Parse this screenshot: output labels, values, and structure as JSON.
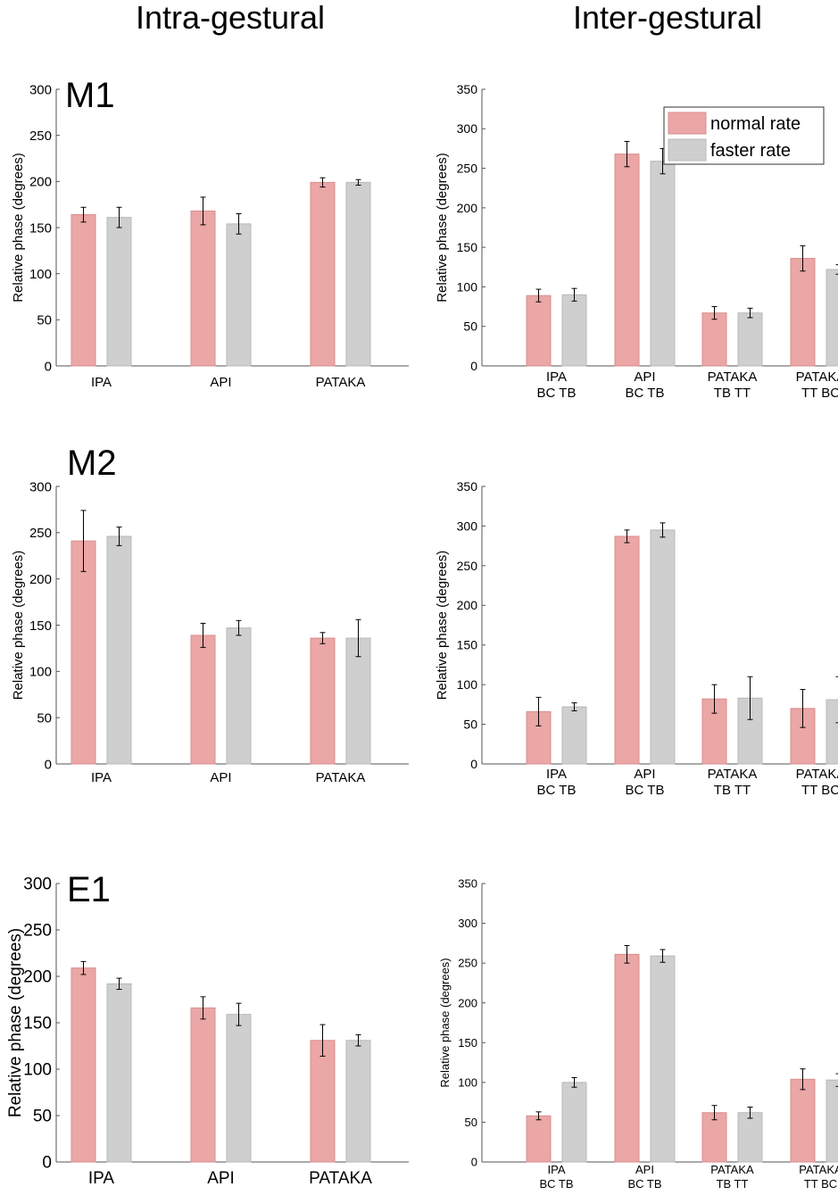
{
  "columns": {
    "left": "Intra-gestural",
    "right": "Inter-gestural"
  },
  "legend": [
    {
      "name": "normal rate",
      "color": "#eba6a6"
    },
    {
      "name": "faster rate",
      "color": "#cfcfcf"
    }
  ],
  "colors": {
    "normal": "#eba6a6",
    "normal_edge": "#d98e8e",
    "faster": "#cfcfcf",
    "faster_edge": "#b8b8b8",
    "axis": "#555555"
  },
  "chart_data": [
    {
      "id": "m1-intra",
      "type": "bar",
      "panel_label": "M1",
      "ylabel": "Relative phase (degrees)",
      "ylim": [
        0,
        300
      ],
      "yticks": [
        0,
        50,
        100,
        150,
        200,
        250,
        300
      ],
      "categories": [
        [
          "IPA"
        ],
        [
          "API"
        ],
        [
          "PATAKA"
        ]
      ],
      "series": [
        {
          "name": "normal rate",
          "values": [
            164,
            168,
            199
          ],
          "errors": [
            8,
            15,
            5
          ]
        },
        {
          "name": "faster rate",
          "values": [
            161,
            154,
            199
          ],
          "errors": [
            11,
            11,
            3
          ]
        }
      ]
    },
    {
      "id": "m1-inter",
      "type": "bar",
      "panel_label": "",
      "ylabel": "Relative phase (degrees)",
      "ylim": [
        0,
        350
      ],
      "yticks": [
        0,
        50,
        100,
        150,
        200,
        250,
        300,
        350
      ],
      "categories": [
        [
          "IPA",
          "BC TB"
        ],
        [
          "API",
          "BC TB"
        ],
        [
          "PATAKA",
          "TB TT"
        ],
        [
          "PATAKA",
          "TT BC"
        ]
      ],
      "series": [
        {
          "name": "normal rate",
          "values": [
            89,
            268,
            67,
            136
          ],
          "errors": [
            8,
            16,
            8,
            16
          ]
        },
        {
          "name": "faster rate",
          "values": [
            90,
            259,
            67,
            122
          ],
          "errors": [
            8,
            16,
            6,
            6
          ]
        }
      ]
    },
    {
      "id": "m2-intra",
      "type": "bar",
      "panel_label": "M2",
      "ylabel": "Relative phase (degrees)",
      "ylim": [
        0,
        300
      ],
      "yticks": [
        0,
        50,
        100,
        150,
        200,
        250,
        300
      ],
      "categories": [
        [
          "IPA"
        ],
        [
          "API"
        ],
        [
          "PATAKA"
        ]
      ],
      "series": [
        {
          "name": "normal rate",
          "values": [
            241,
            139,
            136
          ],
          "errors": [
            33,
            13,
            6
          ]
        },
        {
          "name": "faster rate",
          "values": [
            246,
            147,
            136
          ],
          "errors": [
            10,
            8,
            20
          ]
        }
      ]
    },
    {
      "id": "m2-inter",
      "type": "bar",
      "panel_label": "",
      "ylabel": "Relative phase (degrees)",
      "ylim": [
        0,
        350
      ],
      "yticks": [
        0,
        50,
        100,
        150,
        200,
        250,
        300,
        350
      ],
      "categories": [
        [
          "IPA",
          "BC TB"
        ],
        [
          "API",
          "BC TB"
        ],
        [
          "PATAKA",
          "TB TT"
        ],
        [
          "PATAKA",
          "TT BC"
        ]
      ],
      "series": [
        {
          "name": "normal rate",
          "values": [
            66,
            287,
            82,
            70
          ],
          "errors": [
            18,
            8,
            18,
            24
          ]
        },
        {
          "name": "faster rate",
          "values": [
            72,
            295,
            83,
            81
          ],
          "errors": [
            5,
            9,
            27,
            29
          ]
        }
      ]
    },
    {
      "id": "e1-intra",
      "type": "bar",
      "panel_label": "E1",
      "ylabel": "Relative phase (degrees)",
      "ylim": [
        0,
        300
      ],
      "yticks": [
        0,
        50,
        100,
        150,
        200,
        250,
        300
      ],
      "categories": [
        [
          "IPA"
        ],
        [
          "API"
        ],
        [
          "PATAKA"
        ]
      ],
      "series": [
        {
          "name": "normal rate",
          "values": [
            209,
            166,
            131
          ],
          "errors": [
            7,
            12,
            17
          ]
        },
        {
          "name": "faster rate",
          "values": [
            192,
            159,
            131
          ],
          "errors": [
            6,
            12,
            6
          ]
        }
      ]
    },
    {
      "id": "e1-inter",
      "type": "bar",
      "panel_label": "",
      "ylabel": "Relative phase (degrees)",
      "ylim": [
        0,
        350
      ],
      "yticks": [
        0,
        50,
        100,
        150,
        200,
        250,
        300,
        350
      ],
      "categories": [
        [
          "IPA",
          "BC TB"
        ],
        [
          "API",
          "BC TB"
        ],
        [
          "PATAKA",
          "TB TT"
        ],
        [
          "PATAKA",
          "TT BC"
        ]
      ],
      "series": [
        {
          "name": "normal rate",
          "values": [
            58,
            261,
            62,
            104
          ],
          "errors": [
            5,
            11,
            9,
            13
          ]
        },
        {
          "name": "faster rate",
          "values": [
            100,
            259,
            62,
            103
          ],
          "errors": [
            6,
            8,
            7,
            8
          ]
        }
      ]
    }
  ]
}
